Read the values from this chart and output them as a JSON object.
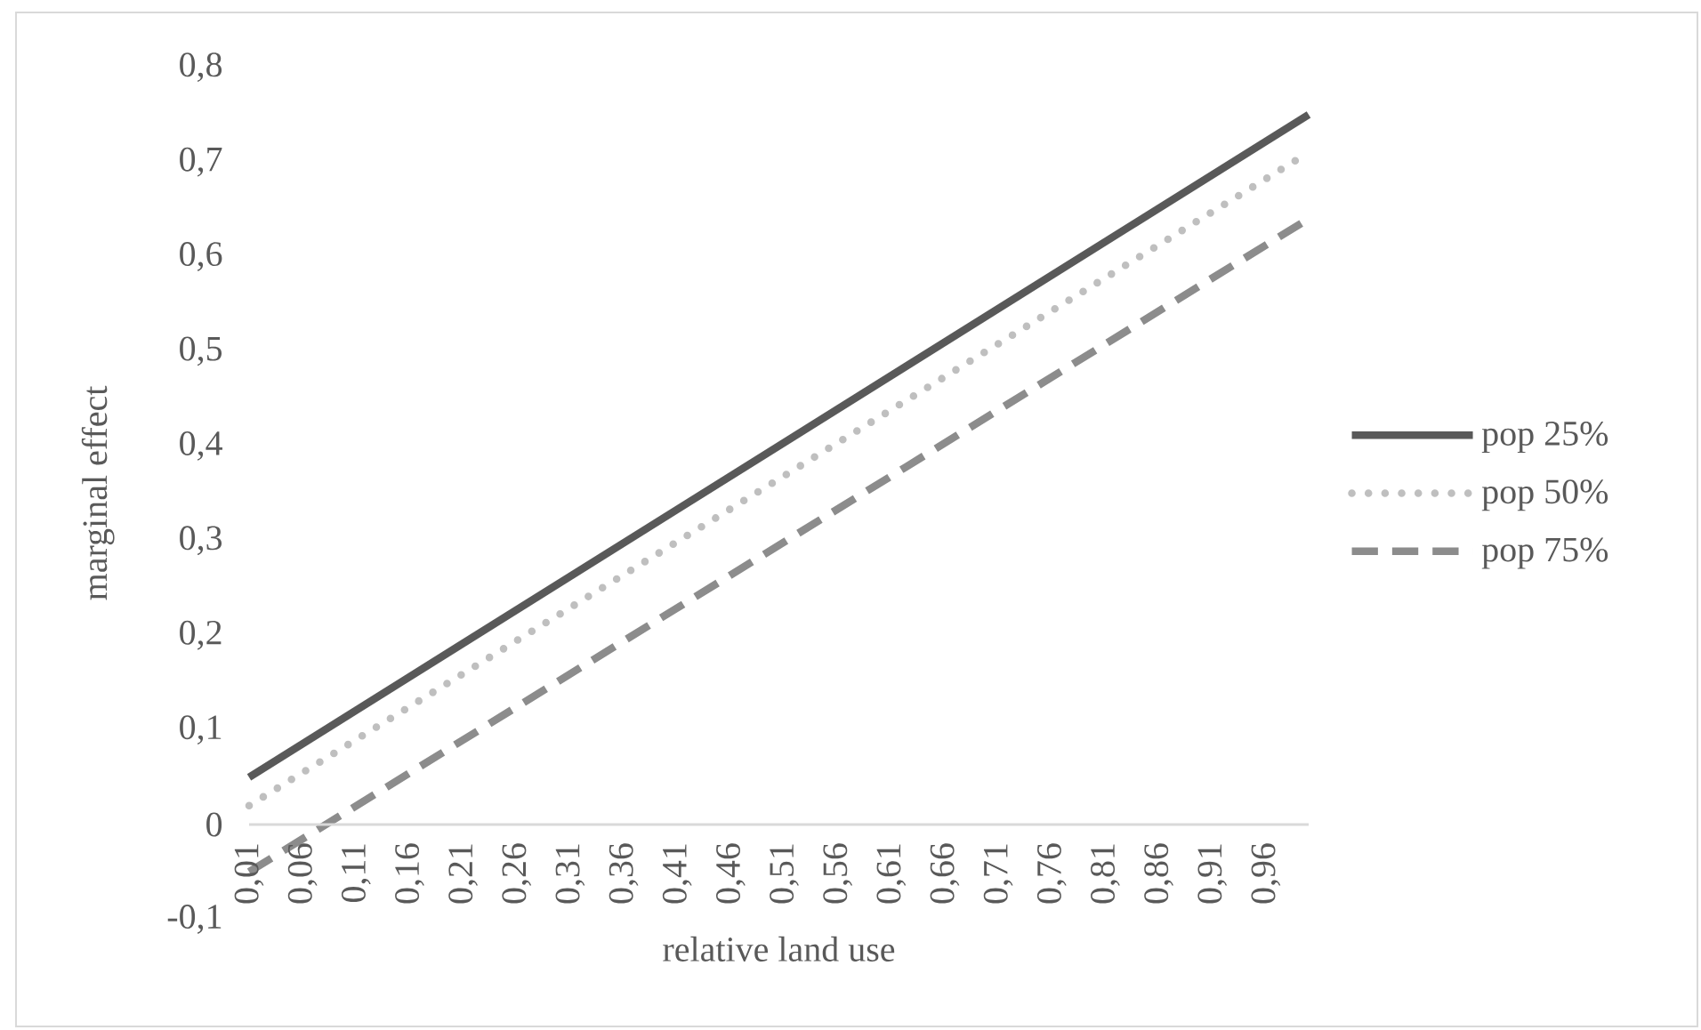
{
  "chart_data": {
    "type": "line",
    "xlabel": "relative land use",
    "ylabel": "marginal effect",
    "x": [
      0.01,
      1.0
    ],
    "series": [
      {
        "name": "pop 25%",
        "color": "#595959",
        "line_style": "solid",
        "values": [
          0.05,
          0.75
        ]
      },
      {
        "name": "pop 50%",
        "color": "#bfbfbf",
        "line_style": "dotted",
        "values": [
          0.02,
          0.71
        ]
      },
      {
        "name": "pop 75%",
        "color": "#8c8c8c",
        "line_style": "dashed",
        "values": [
          -0.05,
          0.64
        ]
      }
    ],
    "xlim": [
      0.01,
      1.0
    ],
    "xticks": [
      {
        "value": 0.01,
        "label": "0,01"
      },
      {
        "value": 0.06,
        "label": "0,06"
      },
      {
        "value": 0.11,
        "label": "0,11"
      },
      {
        "value": 0.16,
        "label": "0,16"
      },
      {
        "value": 0.21,
        "label": "0,21"
      },
      {
        "value": 0.26,
        "label": "0,26"
      },
      {
        "value": 0.31,
        "label": "0,31"
      },
      {
        "value": 0.36,
        "label": "0,36"
      },
      {
        "value": 0.41,
        "label": "0,41"
      },
      {
        "value": 0.46,
        "label": "0,46"
      },
      {
        "value": 0.51,
        "label": "0,51"
      },
      {
        "value": 0.56,
        "label": "0,56"
      },
      {
        "value": 0.61,
        "label": "0,61"
      },
      {
        "value": 0.66,
        "label": "0,66"
      },
      {
        "value": 0.71,
        "label": "0,71"
      },
      {
        "value": 0.76,
        "label": "0,76"
      },
      {
        "value": 0.81,
        "label": "0,81"
      },
      {
        "value": 0.86,
        "label": "0,86"
      },
      {
        "value": 0.91,
        "label": "0,91"
      },
      {
        "value": 0.96,
        "label": "0,96"
      }
    ],
    "ylim": [
      -0.1,
      0.8
    ],
    "yticks": [
      {
        "value": -0.1,
        "label": "-0,1"
      },
      0,
      {
        "value": 0.1,
        "label": "0,1"
      },
      {
        "value": 0.2,
        "label": "0,2"
      },
      {
        "value": 0.3,
        "label": "0,3"
      },
      {
        "value": 0.4,
        "label": "0,4"
      },
      {
        "value": 0.5,
        "label": "0,5"
      },
      {
        "value": 0.6,
        "label": "0,6"
      },
      {
        "value": 0.7,
        "label": "0,7"
      },
      {
        "value": 0.8,
        "label": "0,8"
      }
    ],
    "grid": false,
    "legend": "right"
  }
}
